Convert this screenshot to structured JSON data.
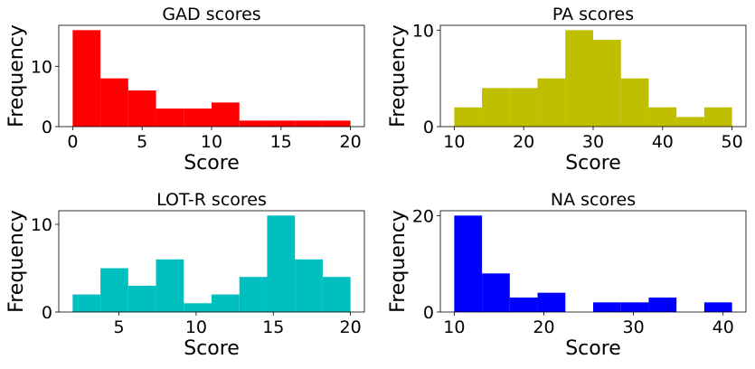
{
  "chart_data": [
    {
      "type": "bar",
      "title": "GAD scores",
      "xlabel": "Score",
      "ylabel": "Frequency",
      "color": "#ff0000",
      "xlim": [
        -1,
        21
      ],
      "ylim": [
        0,
        16.8
      ],
      "xticks": [
        0,
        5,
        10,
        15,
        20
      ],
      "yticks": [
        0,
        10
      ],
      "bins": [
        {
          "start": 0,
          "end": 2,
          "count": 16
        },
        {
          "start": 2,
          "end": 4,
          "count": 8
        },
        {
          "start": 4,
          "end": 6,
          "count": 6
        },
        {
          "start": 6,
          "end": 8,
          "count": 3
        },
        {
          "start": 8,
          "end": 10,
          "count": 3
        },
        {
          "start": 10,
          "end": 12,
          "count": 4
        },
        {
          "start": 12,
          "end": 14,
          "count": 1
        },
        {
          "start": 14,
          "end": 16,
          "count": 1
        },
        {
          "start": 16,
          "end": 18,
          "count": 1
        },
        {
          "start": 18,
          "end": 20,
          "count": 1
        }
      ]
    },
    {
      "type": "bar",
      "title": "PA scores",
      "xlabel": "Score",
      "ylabel": "Frequency",
      "color": "#bfbf00",
      "xlim": [
        8,
        52
      ],
      "ylim": [
        0,
        10.5
      ],
      "xticks": [
        10,
        20,
        30,
        40,
        50
      ],
      "yticks": [
        0,
        10
      ],
      "bins": [
        {
          "start": 10,
          "end": 14,
          "count": 2
        },
        {
          "start": 14,
          "end": 18,
          "count": 4
        },
        {
          "start": 18,
          "end": 22,
          "count": 4
        },
        {
          "start": 22,
          "end": 26,
          "count": 5
        },
        {
          "start": 26,
          "end": 30,
          "count": 10
        },
        {
          "start": 30,
          "end": 34,
          "count": 9
        },
        {
          "start": 34,
          "end": 38,
          "count": 5
        },
        {
          "start": 38,
          "end": 42,
          "count": 2
        },
        {
          "start": 42,
          "end": 46,
          "count": 1
        },
        {
          "start": 46,
          "end": 50,
          "count": 2
        }
      ]
    },
    {
      "type": "bar",
      "title": "LOT-R scores",
      "xlabel": "Score",
      "ylabel": "Frequency",
      "color": "#00bfbf",
      "xlim": [
        1.1,
        20.9
      ],
      "ylim": [
        0,
        11.55
      ],
      "xticks": [
        5,
        10,
        15,
        20
      ],
      "yticks": [
        0,
        10
      ],
      "bins": [
        {
          "start": 2.0,
          "end": 3.8,
          "count": 2
        },
        {
          "start": 3.8,
          "end": 5.6,
          "count": 5
        },
        {
          "start": 5.6,
          "end": 7.4,
          "count": 3
        },
        {
          "start": 7.4,
          "end": 9.2,
          "count": 6
        },
        {
          "start": 9.2,
          "end": 11.0,
          "count": 1
        },
        {
          "start": 11.0,
          "end": 12.8,
          "count": 2
        },
        {
          "start": 12.8,
          "end": 14.6,
          "count": 4
        },
        {
          "start": 14.6,
          "end": 16.4,
          "count": 11
        },
        {
          "start": 16.4,
          "end": 18.2,
          "count": 6
        },
        {
          "start": 18.2,
          "end": 20.0,
          "count": 4
        }
      ]
    },
    {
      "type": "bar",
      "title": "NA scores",
      "xlabel": "Score",
      "ylabel": "Frequency",
      "color": "#0000ff",
      "xlim": [
        8.45,
        42.55
      ],
      "ylim": [
        0,
        21
      ],
      "xticks": [
        10,
        20,
        30,
        40
      ],
      "yticks": [
        0,
        20
      ],
      "bins": [
        {
          "start": 10.0,
          "end": 13.1,
          "count": 20
        },
        {
          "start": 13.1,
          "end": 16.2,
          "count": 8
        },
        {
          "start": 16.2,
          "end": 19.3,
          "count": 3
        },
        {
          "start": 19.3,
          "end": 22.4,
          "count": 4
        },
        {
          "start": 22.4,
          "end": 25.5,
          "count": 0
        },
        {
          "start": 25.5,
          "end": 28.6,
          "count": 2
        },
        {
          "start": 28.6,
          "end": 31.7,
          "count": 2
        },
        {
          "start": 31.7,
          "end": 34.8,
          "count": 3
        },
        {
          "start": 34.8,
          "end": 37.9,
          "count": 0
        },
        {
          "start": 37.9,
          "end": 41.0,
          "count": 2
        }
      ]
    }
  ]
}
